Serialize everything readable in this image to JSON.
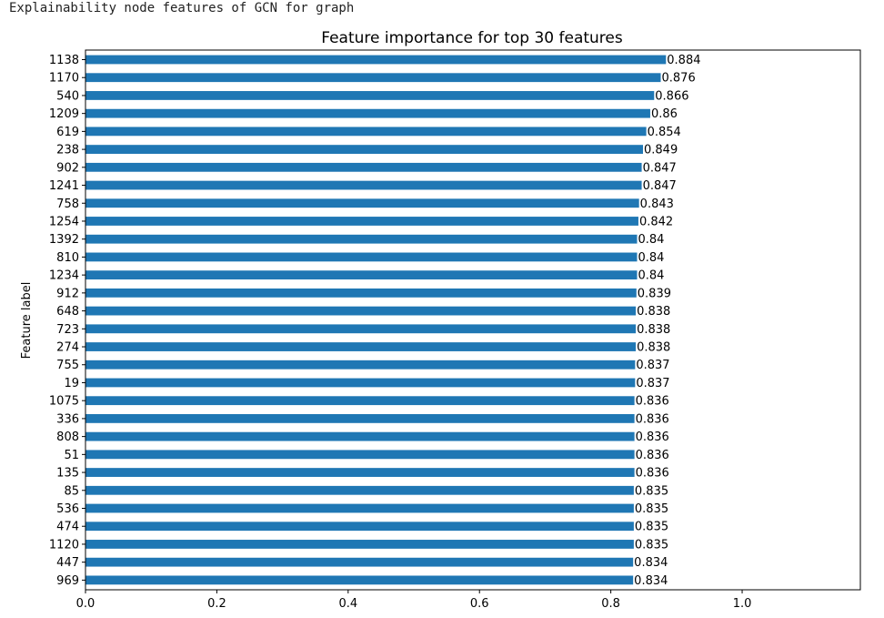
{
  "caption": "Explainability node features of GCN for graph",
  "chart_data": {
    "type": "bar",
    "orientation": "horizontal",
    "title": "Feature importance for top 30 features",
    "xlabel": "",
    "ylabel": "Feature label",
    "xlim": [
      0,
      1.18
    ],
    "xticks": [
      "0.0",
      "0.2",
      "0.4",
      "0.6",
      "0.8",
      "1.0"
    ],
    "grid": false,
    "bar_color": "#1f77b4",
    "categories": [
      "1138",
      "1170",
      "540",
      "1209",
      "619",
      "238",
      "902",
      "1241",
      "758",
      "1254",
      "1392",
      "810",
      "1234",
      "912",
      "648",
      "723",
      "274",
      "755",
      "19",
      "1075",
      "336",
      "808",
      "51",
      "135",
      "85",
      "536",
      "474",
      "1120",
      "447",
      "969"
    ],
    "values": [
      0.884,
      0.876,
      0.866,
      0.86,
      0.854,
      0.849,
      0.847,
      0.847,
      0.843,
      0.842,
      0.84,
      0.84,
      0.84,
      0.839,
      0.838,
      0.838,
      0.838,
      0.837,
      0.837,
      0.836,
      0.836,
      0.836,
      0.836,
      0.836,
      0.835,
      0.835,
      0.835,
      0.835,
      0.834,
      0.834
    ],
    "value_labels": [
      "0.884",
      "0.876",
      "0.866",
      "0.86",
      "0.854",
      "0.849",
      "0.847",
      "0.847",
      "0.843",
      "0.842",
      "0.84",
      "0.84",
      "0.84",
      "0.839",
      "0.838",
      "0.838",
      "0.838",
      "0.837",
      "0.837",
      "0.836",
      "0.836",
      "0.836",
      "0.836",
      "0.836",
      "0.835",
      "0.835",
      "0.835",
      "0.835",
      "0.834",
      "0.834"
    ]
  }
}
